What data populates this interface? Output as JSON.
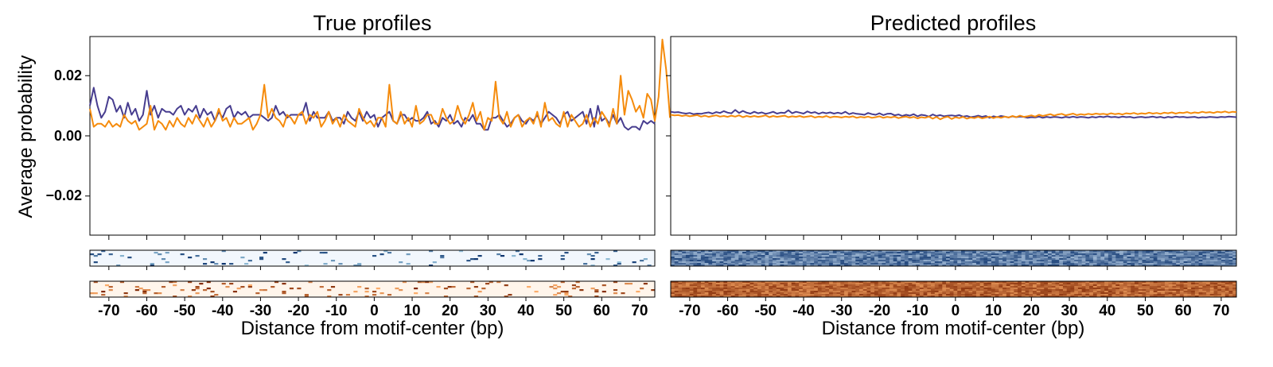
{
  "chart_data": [
    {
      "type": "line",
      "title": "True profiles",
      "xlabel": "Distance from motif-center (bp)",
      "ylabel": "Average probability",
      "xlim": [
        -75,
        74
      ],
      "ylim": [
        -0.033,
        0.033
      ],
      "yticks": [
        0.02,
        0.0,
        -0.02
      ],
      "ytick_labels": [
        "0.02",
        "0.00",
        "−0.02"
      ],
      "xticks": [
        -70,
        -60,
        -50,
        -40,
        -30,
        -20,
        -10,
        0,
        10,
        20,
        30,
        40,
        50,
        60,
        70
      ],
      "xtick_labels": [
        "-70",
        "-60",
        "-50",
        "-40",
        "-30",
        "-20",
        "-10",
        "0",
        "10",
        "20",
        "30",
        "40",
        "50",
        "60",
        "70"
      ],
      "grid": false,
      "x_start": -75,
      "x_step": 1,
      "series": [
        {
          "color": "#473d8f",
          "values": [
            0.01,
            0.016,
            0.01,
            0.006,
            0.008,
            0.013,
            0.012,
            0.008,
            0.01,
            0.006,
            0.011,
            0.007,
            0.009,
            0.005,
            0.007,
            0.015,
            0.007,
            0.01,
            0.006,
            0.009,
            0.008,
            0.008,
            0.007,
            0.009,
            0.01,
            0.007,
            0.009,
            0.008,
            0.01,
            0.006,
            0.009,
            0.007,
            0.008,
            0.005,
            0.008,
            0.006,
            0.009,
            0.01,
            0.006,
            0.008,
            0.007,
            0.008,
            0.006,
            0.007,
            0.007,
            0.007,
            0.006,
            0.005,
            0.006,
            0.01,
            0.007,
            0.008,
            0.006,
            0.007,
            0.007,
            0.007,
            0.007,
            0.011,
            0.005,
            0.008,
            0.006,
            0.006,
            0.006,
            0.008,
            0.005,
            0.006,
            0.006,
            0.004,
            0.008,
            0.006,
            0.005,
            0.008,
            0.005,
            0.008,
            0.006,
            0.007,
            0.003,
            0.006,
            0.007,
            0.008,
            0.005,
            0.004,
            0.007,
            0.007,
            0.005,
            0.006,
            0.005,
            0.005,
            0.006,
            0.008,
            0.004,
            0.005,
            0.003,
            0.006,
            0.005,
            0.007,
            0.004,
            0.005,
            0.003,
            0.006,
            0.005,
            0.007,
            0.004,
            0.004,
            0.002,
            0.002,
            0.006,
            0.006,
            0.007,
            0.005,
            0.003,
            0.004,
            0.006,
            0.007,
            0.005,
            0.004,
            0.006,
            0.005,
            0.007,
            0.004,
            0.006,
            0.008,
            0.007,
            0.006,
            0.004,
            0.007,
            0.008,
            0.005,
            0.006,
            0.007,
            0.008,
            0.004,
            0.009,
            0.003,
            0.01,
            0.005,
            0.006,
            0.004,
            0.007,
            0.004,
            0.006,
            0.003,
            0.002,
            0.003,
            0.003,
            0.002,
            0.005,
            0.004,
            0.005,
            0.004
          ]
        },
        {
          "color": "#f58b0c",
          "values": [
            0.009,
            0.003,
            0.004,
            0.004,
            0.003,
            0.005,
            0.003,
            0.004,
            0.003,
            0.007,
            0.005,
            0.004,
            0.005,
            0.002,
            0.003,
            0.004,
            0.01,
            0.002,
            0.005,
            0.004,
            0.002,
            0.005,
            0.003,
            0.006,
            0.004,
            0.003,
            0.006,
            0.004,
            0.007,
            0.005,
            0.003,
            0.006,
            0.003,
            0.005,
            0.009,
            0.005,
            0.006,
            0.003,
            0.006,
            0.004,
            0.004,
            0.005,
            0.006,
            0.002,
            0.004,
            0.007,
            0.017,
            0.006,
            0.009,
            0.006,
            0.005,
            0.003,
            0.007,
            0.006,
            0.004,
            0.007,
            0.008,
            0.004,
            0.007,
            0.006,
            0.008,
            0.003,
            0.005,
            0.008,
            0.004,
            0.006,
            0.003,
            0.007,
            0.005,
            0.004,
            0.003,
            0.009,
            0.006,
            0.004,
            0.005,
            0.003,
            0.006,
            0.006,
            0.003,
            0.017,
            0.005,
            0.004,
            0.008,
            0.004,
            0.006,
            0.003,
            0.01,
            0.004,
            0.005,
            0.007,
            0.007,
            0.004,
            0.004,
            0.009,
            0.006,
            0.004,
            0.005,
            0.01,
            0.006,
            0.004,
            0.007,
            0.011,
            0.005,
            0.008,
            0.002,
            0.006,
            0.005,
            0.018,
            0.006,
            0.004,
            0.008,
            0.003,
            0.006,
            0.007,
            0.003,
            0.005,
            0.006,
            0.004,
            0.008,
            0.003,
            0.011,
            0.005,
            0.006,
            0.004,
            0.003,
            0.008,
            0.003,
            0.007,
            0.005,
            0.003,
            0.004,
            0.007,
            0.003,
            0.006,
            0.004,
            0.008,
            0.006,
            0.003,
            0.009,
            0.004,
            0.02,
            0.007,
            0.015,
            0.012,
            0.008,
            0.01,
            0.006,
            0.014,
            0.012,
            0.005,
            0.013,
            0.032,
            0.022,
            0.006
          ]
        }
      ]
    },
    {
      "type": "line",
      "title": "Predicted profiles",
      "xlabel": "Distance from motif-center (bp)",
      "ylabel": "",
      "xlim": [
        -75,
        74
      ],
      "ylim": [
        -0.033,
        0.033
      ],
      "yticks": [
        0.02,
        0.0,
        -0.02
      ],
      "xticks": [
        -70,
        -60,
        -50,
        -40,
        -30,
        -20,
        -10,
        0,
        10,
        20,
        30,
        40,
        50,
        60,
        70
      ],
      "xtick_labels": [
        "-70",
        "-60",
        "-50",
        "-40",
        "-30",
        "-20",
        "-10",
        "0",
        "10",
        "20",
        "30",
        "40",
        "50",
        "60",
        "70"
      ],
      "grid": false,
      "x_start": -75,
      "x_step": 1,
      "series": [
        {
          "color": "#473d8f",
          "values": [
            0.008,
            0.0078,
            0.0079,
            0.0076,
            0.0074,
            0.0076,
            0.0072,
            0.0074,
            0.0073,
            0.0076,
            0.0078,
            0.0074,
            0.0079,
            0.0076,
            0.0082,
            0.0077,
            0.0075,
            0.0086,
            0.0076,
            0.0083,
            0.0077,
            0.0074,
            0.008,
            0.0075,
            0.0078,
            0.0073,
            0.0076,
            0.008,
            0.0074,
            0.0077,
            0.0076,
            0.0085,
            0.0075,
            0.008,
            0.0077,
            0.0074,
            0.0081,
            0.0076,
            0.0079,
            0.0073,
            0.0078,
            0.0075,
            0.0078,
            0.0074,
            0.0077,
            0.0074,
            0.008,
            0.0072,
            0.0076,
            0.0073,
            0.0072,
            0.007,
            0.0076,
            0.0072,
            0.007,
            0.0075,
            0.0069,
            0.0073,
            0.0074,
            0.0068,
            0.0071,
            0.0066,
            0.007,
            0.0067,
            0.0072,
            0.0065,
            0.007,
            0.0068,
            0.0064,
            0.0071,
            0.0066,
            0.0069,
            0.0065,
            0.0067,
            0.0068,
            0.0066,
            0.0069,
            0.0064,
            0.0066,
            0.0062,
            0.0064,
            0.0067,
            0.0063,
            0.0066,
            0.006,
            0.0065,
            0.0062,
            0.0066,
            0.0064,
            0.0061,
            0.0065,
            0.0062,
            0.0064,
            0.0063,
            0.006,
            0.0062,
            0.0061,
            0.0064,
            0.006,
            0.0063,
            0.0061,
            0.0063,
            0.0062,
            0.006,
            0.0063,
            0.0061,
            0.0064,
            0.0061,
            0.0063,
            0.0062,
            0.006,
            0.0063,
            0.0061,
            0.0064,
            0.0062,
            0.0065,
            0.0062,
            0.0063,
            0.0061,
            0.0064,
            0.0062,
            0.0063,
            0.006,
            0.0062,
            0.0063,
            0.0061,
            0.0062,
            0.0064,
            0.0061,
            0.0063,
            0.006,
            0.0063,
            0.0061,
            0.0064,
            0.0062,
            0.0063,
            0.0061,
            0.0062,
            0.0063,
            0.006,
            0.0062,
            0.0061,
            0.0063,
            0.0062,
            0.0061,
            0.0063,
            0.0062,
            0.0064,
            0.0063,
            0.0062
          ]
        },
        {
          "color": "#f58b0c",
          "values": [
            0.007,
            0.0068,
            0.0069,
            0.0066,
            0.0068,
            0.0065,
            0.0067,
            0.0069,
            0.0064,
            0.0067,
            0.0063,
            0.0066,
            0.0068,
            0.0064,
            0.0066,
            0.0063,
            0.0067,
            0.0064,
            0.0068,
            0.0062,
            0.0066,
            0.0063,
            0.0066,
            0.0063,
            0.0065,
            0.0068,
            0.0062,
            0.0066,
            0.0063,
            0.0065,
            0.0067,
            0.0062,
            0.0065,
            0.0063,
            0.0066,
            0.0062,
            0.0064,
            0.0066,
            0.0061,
            0.0064,
            0.0062,
            0.0066,
            0.0061,
            0.0064,
            0.0063,
            0.0061,
            0.0064,
            0.0062,
            0.0065,
            0.006,
            0.0063,
            0.0061,
            0.0064,
            0.006,
            0.0062,
            0.0065,
            0.006,
            0.0063,
            0.0061,
            0.0064,
            0.0059,
            0.0062,
            0.0064,
            0.006,
            0.0063,
            0.0058,
            0.0062,
            0.006,
            0.0064,
            0.0057,
            0.0063,
            0.0055,
            0.0061,
            0.0064,
            0.0056,
            0.0062,
            0.0059,
            0.0063,
            0.0057,
            0.0061,
            0.0059,
            0.0063,
            0.0058,
            0.0061,
            0.0064,
            0.0059,
            0.0063,
            0.006,
            0.0064,
            0.0061,
            0.0066,
            0.0062,
            0.0067,
            0.0063,
            0.0065,
            0.0068,
            0.0064,
            0.007,
            0.0066,
            0.0069,
            0.0072,
            0.0067,
            0.0071,
            0.0073,
            0.0068,
            0.0071,
            0.0074,
            0.0069,
            0.0072,
            0.007,
            0.0073,
            0.0071,
            0.0074,
            0.0072,
            0.0073,
            0.0071,
            0.0075,
            0.0072,
            0.0074,
            0.0071,
            0.0075,
            0.0073,
            0.0076,
            0.0072,
            0.0075,
            0.0073,
            0.0077,
            0.0074,
            0.0076,
            0.0073,
            0.0077,
            0.0075,
            0.0078,
            0.0074,
            0.0077,
            0.0076,
            0.0079,
            0.0075,
            0.0078,
            0.0076,
            0.008,
            0.0077,
            0.0079,
            0.0076,
            0.008,
            0.0078,
            0.0081,
            0.0077,
            0.008,
            0.0079
          ]
        }
      ]
    }
  ],
  "heatmaps": {
    "true_strand1_cmap": "Blues",
    "true_strand2_cmap": "Oranges",
    "pred_strand1_cmap": "Blues",
    "pred_strand2_cmap": "Oranges",
    "true_blue_base": "#f2f7fd",
    "true_orange_base": "#fff5eb",
    "pred_blue_light": "#c6dbef",
    "pred_blue_dark": "#08306b",
    "pred_orange_light": "#fdae6b",
    "pred_orange_dark": "#7f2704"
  }
}
